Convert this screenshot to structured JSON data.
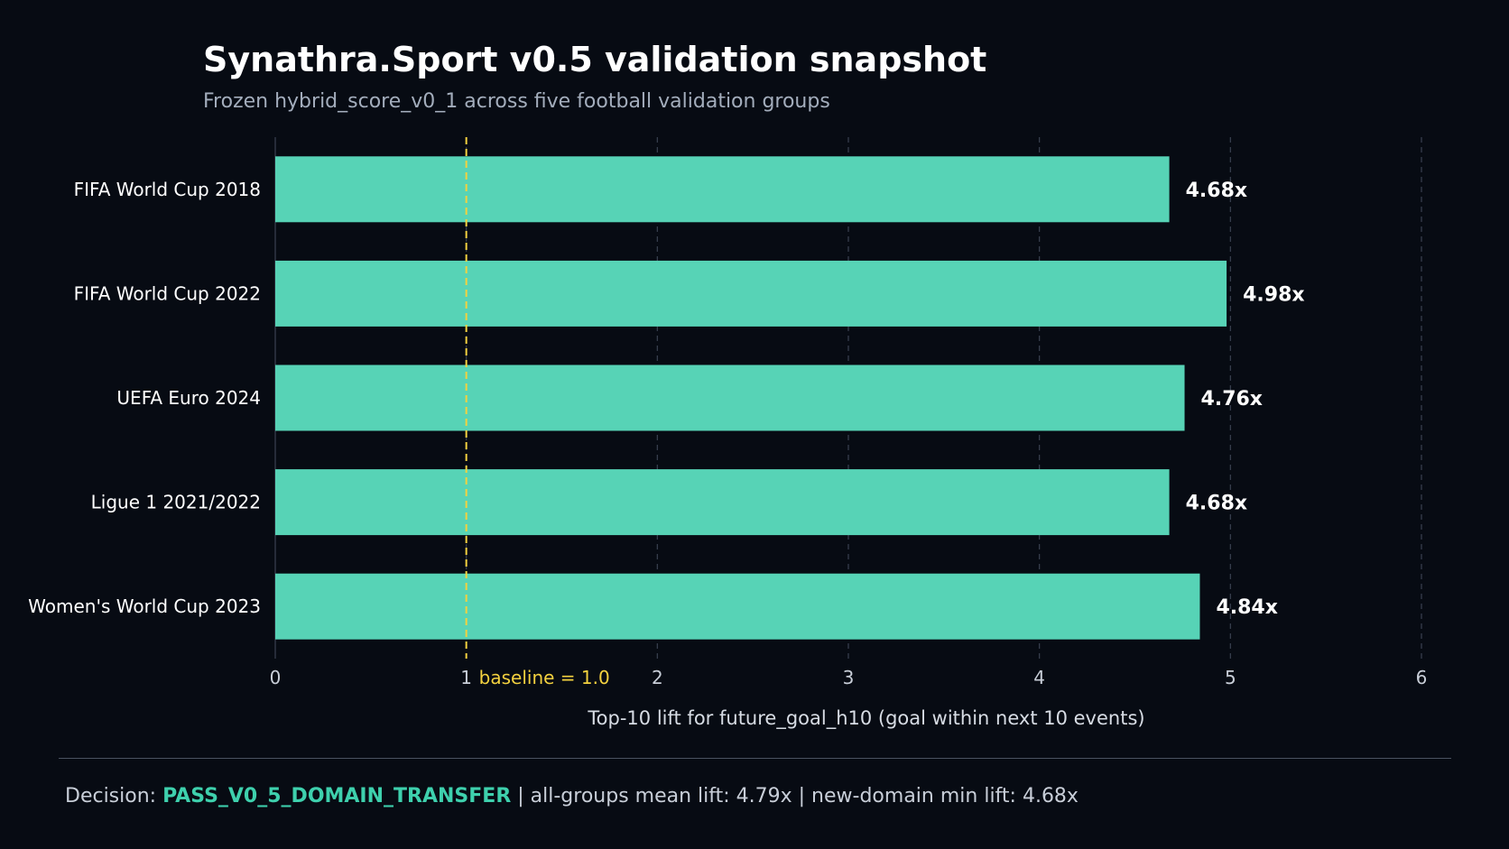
{
  "chart_data": {
    "type": "bar",
    "orientation": "horizontal",
    "title": "Synathra.Sport v0.5 validation snapshot",
    "subtitle": "Frozen hybrid_score_v0_1 across five football validation groups",
    "categories": [
      "FIFA World Cup 2018",
      "FIFA World Cup 2022",
      "UEFA Euro 2024",
      "Ligue 1 2021/2022",
      "Women's World Cup 2023"
    ],
    "values": [
      4.68,
      4.98,
      4.76,
      4.68,
      4.84
    ],
    "value_labels": [
      "4.68x",
      "4.98x",
      "4.76x",
      "4.68x",
      "4.84x"
    ],
    "xlabel": "Top-10 lift for future_goal_h10 (goal within next 10 events)",
    "ylabel": "",
    "xlim": [
      0,
      6
    ],
    "xticks": [
      "0",
      "1",
      "2",
      "3",
      "4",
      "5",
      "6"
    ],
    "reference_line": {
      "value": 1.0,
      "label": "baseline = 1.0",
      "style": "dashed"
    },
    "grid": "vertical dashed",
    "colors": {
      "bar": "#57d3b6",
      "baseline": "#f3d13f",
      "background": "#070b13"
    }
  },
  "footer": {
    "prefix": "Decision: ",
    "decision": "PASS_V0_5_DOMAIN_TRANSFER",
    "rest": " | all-groups mean lift: 4.79x | new-domain min lift: 4.68x"
  }
}
